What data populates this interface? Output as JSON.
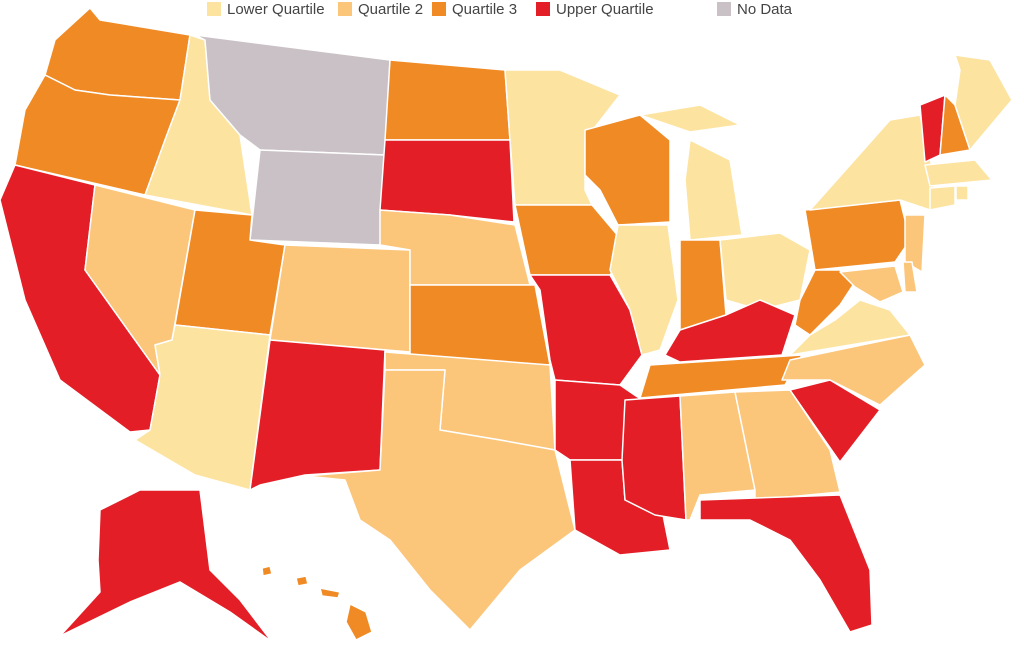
{
  "legend": [
    {
      "label": "Lower Quartile",
      "color": "#fde3a0"
    },
    {
      "label": "Quartile 2",
      "color": "#fbc57a"
    },
    {
      "label": "Quartile 3",
      "color": "#f08a24"
    },
    {
      "label": "Upper Quartile",
      "color": "#e31e26"
    },
    {
      "label": "No Data",
      "color": "#c9c1c5"
    }
  ],
  "regions": [
    2,
    2,
    3,
    1,
    0,
    4,
    4,
    2,
    0,
    1,
    3,
    2,
    3,
    1,
    2,
    1,
    1,
    0,
    2,
    3,
    3,
    3,
    2,
    0,
    0,
    2,
    0,
    3,
    2,
    3,
    1,
    1,
    3,
    3,
    1,
    0,
    2,
    2,
    0,
    3,
    2,
    0,
    0,
    0,
    0,
    1,
    1,
    1,
    3,
    2
  ]
}
